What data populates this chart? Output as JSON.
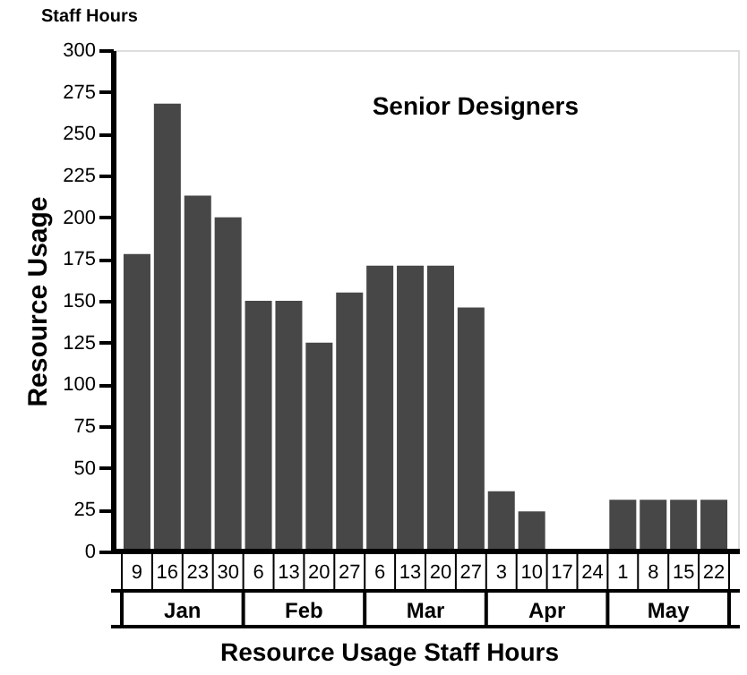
{
  "chart_data": {
    "type": "bar",
    "title": "Senior Designers",
    "xlabel": "Resource Usage Staff Hours",
    "ylabel": "Resource Usage",
    "annotations": [
      "Staff Hours",
      "Jan",
      "Feb",
      "Mar",
      "Apr",
      "May"
    ],
    "categories": [
      "9",
      "16",
      "23",
      "30",
      "6",
      "13",
      "20",
      "27",
      "6",
      "13",
      "20",
      "27",
      "3",
      "10",
      "17",
      "24",
      "1",
      "8",
      "15",
      "22"
    ],
    "values": [
      178,
      268,
      213,
      200,
      150,
      150,
      125,
      155,
      171,
      171,
      171,
      146,
      36,
      24,
      0,
      0,
      31,
      31,
      31,
      31
    ],
    "color": "#474747",
    "ylim": [
      0,
      300
    ],
    "yticks": [
      0,
      25,
      50,
      75,
      100,
      125,
      150,
      175,
      200,
      225,
      250,
      275,
      300
    ],
    "grid": false
  }
}
